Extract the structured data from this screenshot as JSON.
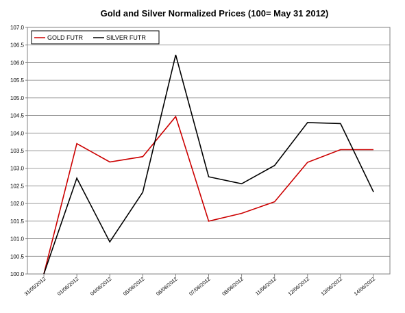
{
  "chart_data": {
    "type": "line",
    "title": "Gold and Silver Normalized Prices  (100= May 31 2012)",
    "categories": [
      "31/05/2012",
      "01/06/2012",
      "04/06/2012",
      "05/06/2012",
      "06/06/2012",
      "07/06/2012",
      "08/06/2012",
      "11/06/2012",
      "12/06/2012",
      "13/06/2012",
      "14/06/2012"
    ],
    "series": [
      {
        "name": "GOLD  FUTR",
        "color": "#cc0000",
        "values": [
          100.0,
          103.7,
          103.18,
          103.33,
          104.47,
          101.5,
          101.72,
          102.05,
          103.17,
          103.53,
          103.53
        ]
      },
      {
        "name": "SILVER  FUTR",
        "color": "#000000",
        "values": [
          100.0,
          102.72,
          100.91,
          102.32,
          106.22,
          102.76,
          102.56,
          103.08,
          104.3,
          104.27,
          102.33
        ]
      }
    ],
    "y_ticks": [
      "100.0",
      "100.5",
      "101.0",
      "101.5",
      "102.0",
      "102.5",
      "103.0",
      "103.5",
      "104.0",
      "104.5",
      "105.0",
      "105.5",
      "106.0",
      "106.5",
      "107.0"
    ],
    "ylim": [
      100,
      107
    ],
    "xlabel": "",
    "ylabel": "",
    "grid": "horizontal",
    "legend": "top-left"
  }
}
